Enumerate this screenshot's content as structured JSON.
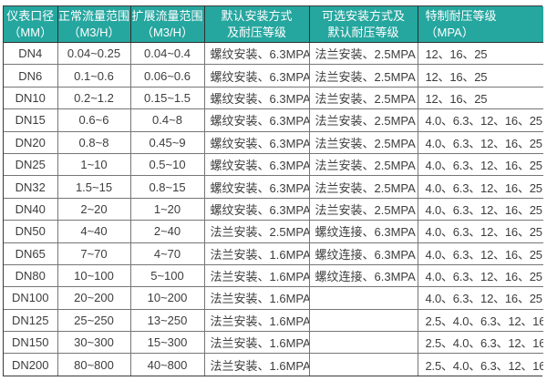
{
  "colors": {
    "header_bg": "#25a69f",
    "header_text": "#ffffff",
    "body_text": "#3d3d3d",
    "outer_border": "#3a3a3a",
    "grid_border": "#767676",
    "row_bg": "#ffffff"
  },
  "table": {
    "headers": [
      {
        "key": "diameter",
        "line1": "仪表口径",
        "line2": "（MM）"
      },
      {
        "key": "normal-range",
        "line1": "正常流量范围",
        "line2": "（M3/H）"
      },
      {
        "key": "extended-range",
        "line1": "扩展流量范围",
        "line2": "（M3/H）"
      },
      {
        "key": "default-install",
        "line1": "默认安装方式",
        "line2": "及耐压等级"
      },
      {
        "key": "optional-install",
        "line1": "可选安装方式及",
        "line2": "默认耐压等级"
      },
      {
        "key": "special-pressure",
        "line1": "特制耐压等级",
        "line2": "（MPA）"
      }
    ],
    "rows": [
      {
        "dn": "DN4",
        "normal_range": "0.04~0.25",
        "extended_range": "0.04~0.4",
        "default_install": "螺纹安装、6.3MPA",
        "optional_install": "法兰安装、2.5MPA",
        "special_pressure": "12、16、25"
      },
      {
        "dn": "DN6",
        "normal_range": "0.1~0.6",
        "extended_range": "0.06~0.6",
        "default_install": "螺纹安装、6.3MPA",
        "optional_install": "法兰安装、2.5MPA",
        "special_pressure": "12、16、25"
      },
      {
        "dn": "DN10",
        "normal_range": "0.2~1.2",
        "extended_range": "0.15~1.5",
        "default_install": "螺纹安装、6.3MPA",
        "optional_install": "法兰安装、2.5MPA",
        "special_pressure": "12、16、25"
      },
      {
        "dn": "DN15",
        "normal_range": "0.6~6",
        "extended_range": "0.4~8",
        "default_install": "螺纹安装、6.3MPA",
        "optional_install": "法兰安装、2.5MPA",
        "special_pressure": "4.0、6.3、12、16、25"
      },
      {
        "dn": "DN20",
        "normal_range": "0.8~8",
        "extended_range": "0.45~9",
        "default_install": "螺纹安装、6.3MPA",
        "optional_install": "法兰安装、2.5MPA",
        "special_pressure": "4.0、6.3、12、16、25"
      },
      {
        "dn": "DN25",
        "normal_range": "1~10",
        "extended_range": "0.5~10",
        "default_install": "螺纹安装、6.3MPA",
        "optional_install": "法兰安装、2.5MPA",
        "special_pressure": "4.0、6.3、12、16、25"
      },
      {
        "dn": "DN32",
        "normal_range": "1.5~15",
        "extended_range": "0.8~15",
        "default_install": "螺纹安装、6.3MPA",
        "optional_install": "法兰安装、2.5MPA",
        "special_pressure": "4.0、6.3、12、16、25"
      },
      {
        "dn": "DN40",
        "normal_range": "2~20",
        "extended_range": "1~20",
        "default_install": "螺纹安装、6.3MPA",
        "optional_install": "法兰安装、2.5MPA",
        "special_pressure": "4.0、6.3、12、16、25"
      },
      {
        "dn": "DN50",
        "normal_range": "4~40",
        "extended_range": "2~40",
        "default_install": "法兰安装、2.5MPA",
        "optional_install": "螺纹连接、6.3MPA",
        "special_pressure": "4.0、6.3、12、16、25"
      },
      {
        "dn": "DN65",
        "normal_range": "7~70",
        "extended_range": "4~70",
        "default_install": "法兰安装、1.6MPA",
        "optional_install": "螺纹连接、6.3MPA",
        "special_pressure": "4.0、6.3、12、16、25"
      },
      {
        "dn": "DN80",
        "normal_range": "10~100",
        "extended_range": "5~100",
        "default_install": "法兰安装、1.6MPA",
        "optional_install": "螺纹连接、6.3MPA",
        "special_pressure": "4.0、6.3、12、16、25"
      },
      {
        "dn": "DN100",
        "normal_range": "20~200",
        "extended_range": "10~200",
        "default_install": "法兰安装、1.6MPA",
        "optional_install": "",
        "special_pressure": "4.0、6.3、12、16、25"
      },
      {
        "dn": "DN125",
        "normal_range": "25~250",
        "extended_range": "13~250",
        "default_install": "法兰安装、1.6MPA",
        "optional_install": "",
        "special_pressure": "2.5、4.0、6.3、12、16"
      },
      {
        "dn": "DN150",
        "normal_range": "30~300",
        "extended_range": "15~300",
        "default_install": "法兰安装、1.6MPA",
        "optional_install": "",
        "special_pressure": "2.5、4.0、6.3、12、16"
      },
      {
        "dn": "DN200",
        "normal_range": "80~800",
        "extended_range": "40~800",
        "default_install": "法兰安装、1.6MPA",
        "optional_install": "",
        "special_pressure": "2.5、4.0、6.3、12、16"
      }
    ]
  }
}
